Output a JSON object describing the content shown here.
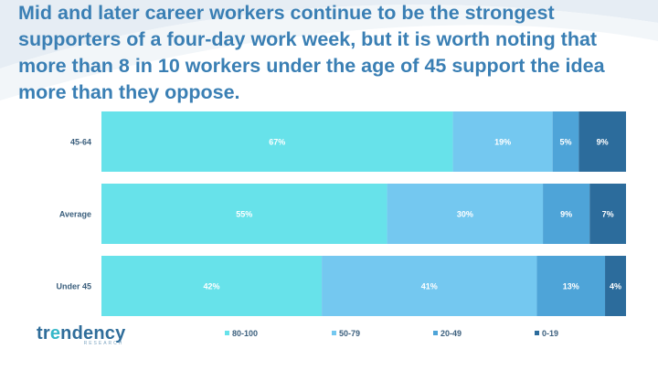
{
  "title": "Mid and later career workers continue to be the strongest supporters of a four-day work week, but it is worth noting that more than 8 in 10 workers under the age of 45 support the idea more than they oppose.",
  "logo": {
    "prefix": "tr",
    "accent": "e",
    "suffix": "ndency",
    "sub": "RESEARCH"
  },
  "chart_data": {
    "type": "bar",
    "orientation": "horizontal",
    "stacked": true,
    "categories": [
      "45-64",
      "Average",
      "Under 45"
    ],
    "series": [
      {
        "name": "80-100",
        "color": "#67e2ea",
        "values": [
          67,
          55,
          42
        ]
      },
      {
        "name": "50-79",
        "color": "#74c8f0",
        "values": [
          19,
          30,
          41
        ]
      },
      {
        "name": "20-49",
        "color": "#4ea4d8",
        "values": [
          5,
          9,
          13
        ]
      },
      {
        "name": "0-19",
        "color": "#2c6c9c",
        "values": [
          9,
          7,
          4
        ]
      }
    ],
    "value_suffix": "%",
    "legend_position": "bottom",
    "grid": false
  }
}
